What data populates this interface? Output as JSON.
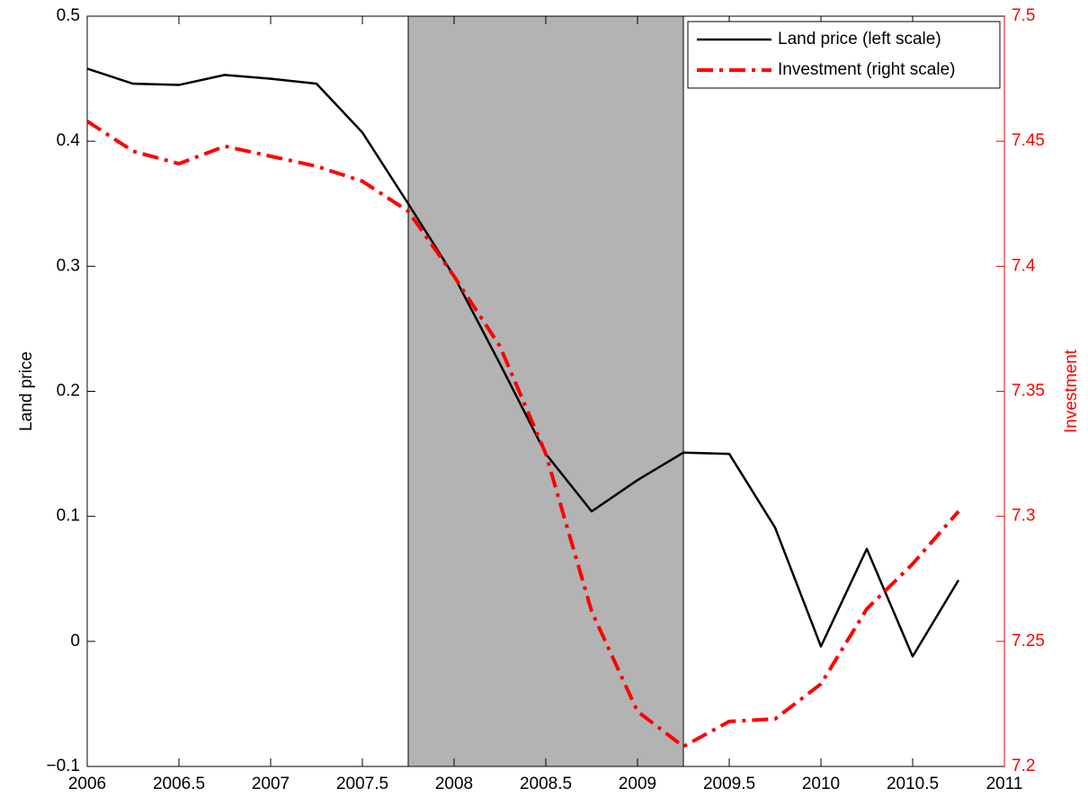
{
  "chart_data": {
    "type": "line",
    "x": [
      2006,
      2006.25,
      2006.5,
      2006.75,
      2007,
      2007.25,
      2007.5,
      2007.75,
      2008,
      2008.25,
      2008.5,
      2008.75,
      2009,
      2009.25,
      2009.5,
      2009.75,
      2010,
      2010.25,
      2010.5,
      2010.75
    ],
    "series": [
      {
        "name": "Land price (left scale)",
        "color": "#000000",
        "values": [
          0.458,
          0.446,
          0.445,
          0.453,
          0.45,
          0.446,
          0.407,
          0.35,
          0.292,
          0.222,
          0.15,
          0.104,
          0.129,
          0.151,
          0.15,
          0.091,
          -0.004,
          0.074,
          -0.012,
          0.049
        ]
      },
      {
        "name": "Investment (right scale)",
        "color": "#ff0000",
        "axis": "y2",
        "values": [
          7.458,
          7.446,
          7.441,
          7.448,
          7.444,
          7.44,
          7.434,
          7.422,
          7.396,
          7.368,
          7.325,
          7.262,
          7.222,
          7.208,
          7.218,
          7.219,
          7.233,
          7.263,
          7.281,
          7.302
        ]
      }
    ],
    "shade": [
      2007.75,
      2009.25
    ],
    "y_label": "Land price",
    "y2_label": "Investment",
    "xlim": [
      2006,
      2011
    ],
    "xticks": [
      2006,
      2006.5,
      2007,
      2007.5,
      2008,
      2008.5,
      2009,
      2009.5,
      2010,
      2010.5,
      2011
    ],
    "ylim": [
      -0.1,
      0.5
    ],
    "yticks": [
      {
        "value": -0.1,
        "label": "−0.1"
      },
      0,
      0.1,
      0.2,
      0.3,
      0.4,
      0.5
    ],
    "y2lim": [
      7.2,
      7.5
    ],
    "y2ticks": [
      7.2,
      7.25,
      7.3,
      7.35,
      7.4,
      7.45,
      7.5
    ],
    "legend": "upper right"
  }
}
